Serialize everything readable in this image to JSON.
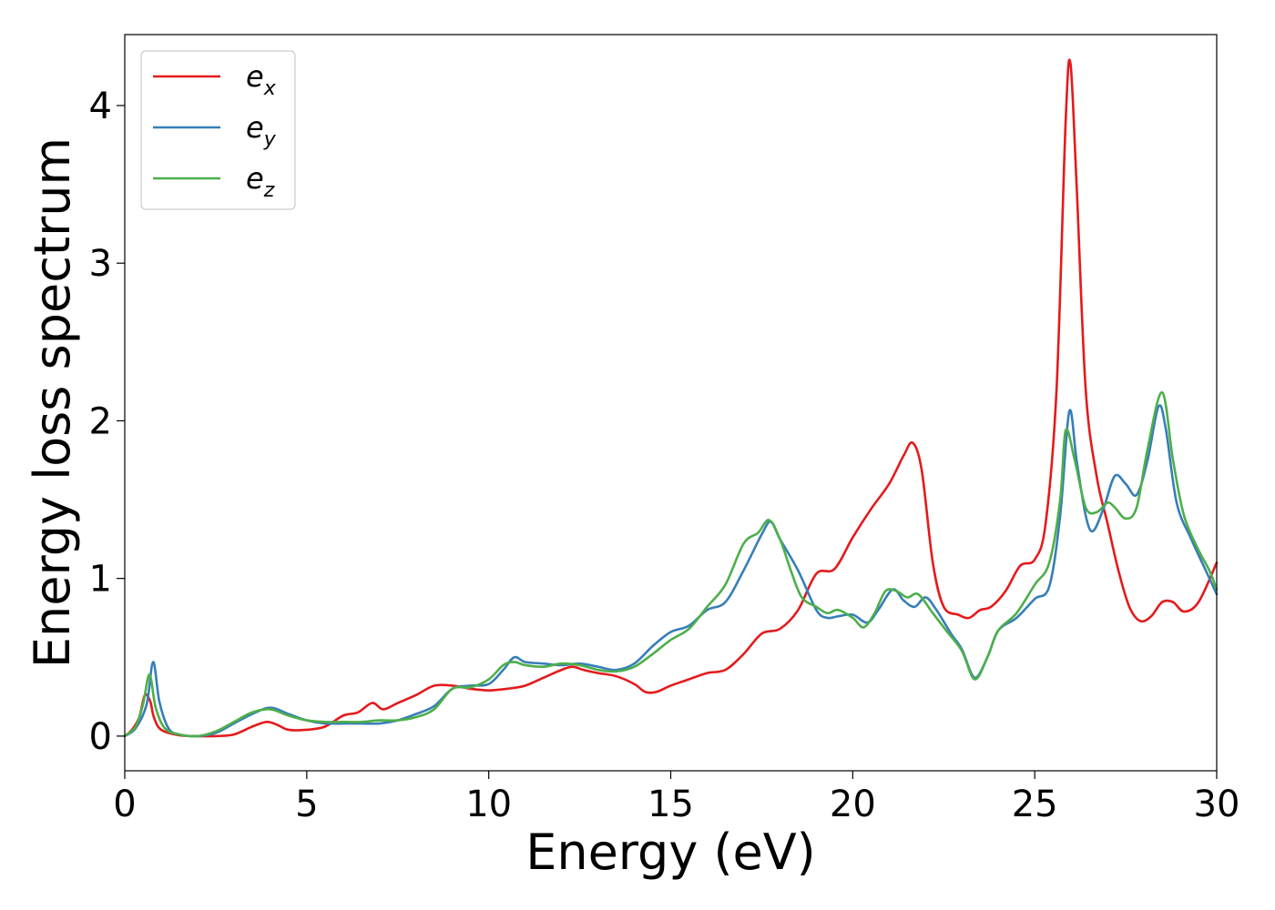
{
  "chart_data": {
    "type": "line",
    "xlabel": "Energy (eV)",
    "ylabel": "Energy loss spectrum",
    "xlim": [
      0,
      30
    ],
    "ylim": [
      -0.22,
      4.45
    ],
    "xticks": [
      0,
      5,
      10,
      15,
      20,
      25,
      30
    ],
    "xtick_labels": [
      "0",
      "5",
      "10",
      "15",
      "20",
      "25",
      "30"
    ],
    "yticks": [
      0,
      1,
      2,
      3,
      4
    ],
    "ytick_labels": [
      "0",
      "1",
      "2",
      "3",
      "4"
    ],
    "grid": false,
    "legend_position": "top-left",
    "series": [
      {
        "name": "e_x",
        "label_base": "e",
        "label_sub": "x",
        "color": "#e41a1c",
        "points": [
          [
            0,
            0.0
          ],
          [
            0.2,
            0.04
          ],
          [
            0.4,
            0.12
          ],
          [
            0.55,
            0.26
          ],
          [
            0.7,
            0.22
          ],
          [
            0.8,
            0.12
          ],
          [
            1.0,
            0.04
          ],
          [
            1.5,
            0.005
          ],
          [
            2.0,
            0.0
          ],
          [
            2.5,
            0.0
          ],
          [
            3.0,
            0.01
          ],
          [
            3.5,
            0.06
          ],
          [
            3.9,
            0.09
          ],
          [
            4.2,
            0.07
          ],
          [
            4.5,
            0.04
          ],
          [
            5.0,
            0.04
          ],
          [
            5.5,
            0.06
          ],
          [
            6.0,
            0.13
          ],
          [
            6.4,
            0.15
          ],
          [
            6.8,
            0.21
          ],
          [
            7.1,
            0.17
          ],
          [
            7.5,
            0.21
          ],
          [
            8.0,
            0.26
          ],
          [
            8.5,
            0.32
          ],
          [
            9.0,
            0.32
          ],
          [
            9.5,
            0.3
          ],
          [
            10.0,
            0.29
          ],
          [
            10.5,
            0.3
          ],
          [
            11.0,
            0.32
          ],
          [
            11.5,
            0.37
          ],
          [
            12.0,
            0.42
          ],
          [
            12.3,
            0.44
          ],
          [
            12.6,
            0.42
          ],
          [
            13.0,
            0.4
          ],
          [
            13.5,
            0.38
          ],
          [
            14.0,
            0.33
          ],
          [
            14.3,
            0.28
          ],
          [
            14.6,
            0.28
          ],
          [
            15.0,
            0.32
          ],
          [
            15.5,
            0.36
          ],
          [
            16.0,
            0.4
          ],
          [
            16.5,
            0.42
          ],
          [
            17.0,
            0.52
          ],
          [
            17.5,
            0.65
          ],
          [
            18.0,
            0.68
          ],
          [
            18.5,
            0.8
          ],
          [
            19.0,
            1.03
          ],
          [
            19.5,
            1.06
          ],
          [
            20.0,
            1.26
          ],
          [
            20.5,
            1.44
          ],
          [
            21.0,
            1.6
          ],
          [
            21.4,
            1.78
          ],
          [
            21.65,
            1.86
          ],
          [
            21.9,
            1.68
          ],
          [
            22.2,
            1.1
          ],
          [
            22.5,
            0.82
          ],
          [
            22.9,
            0.77
          ],
          [
            23.2,
            0.75
          ],
          [
            23.5,
            0.8
          ],
          [
            23.8,
            0.82
          ],
          [
            24.2,
            0.92
          ],
          [
            24.6,
            1.08
          ],
          [
            25.0,
            1.12
          ],
          [
            25.3,
            1.35
          ],
          [
            25.6,
            2.2
          ],
          [
            25.85,
            3.9
          ],
          [
            25.98,
            4.27
          ],
          [
            26.15,
            3.5
          ],
          [
            26.4,
            2.2
          ],
          [
            26.7,
            1.65
          ],
          [
            27.0,
            1.35
          ],
          [
            27.3,
            1.05
          ],
          [
            27.6,
            0.82
          ],
          [
            27.9,
            0.73
          ],
          [
            28.2,
            0.76
          ],
          [
            28.5,
            0.85
          ],
          [
            28.8,
            0.85
          ],
          [
            29.1,
            0.79
          ],
          [
            29.5,
            0.85
          ],
          [
            30.0,
            1.1
          ]
        ]
      },
      {
        "name": "e_y",
        "label_base": "e",
        "label_sub": "y",
        "color": "#377eb8",
        "points": [
          [
            0,
            0.0
          ],
          [
            0.3,
            0.05
          ],
          [
            0.6,
            0.2
          ],
          [
            0.78,
            0.47
          ],
          [
            0.95,
            0.22
          ],
          [
            1.2,
            0.05
          ],
          [
            1.5,
            0.01
          ],
          [
            2.0,
            0.0
          ],
          [
            2.5,
            0.02
          ],
          [
            3.0,
            0.08
          ],
          [
            3.5,
            0.14
          ],
          [
            4.0,
            0.18
          ],
          [
            4.5,
            0.14
          ],
          [
            5.0,
            0.1
          ],
          [
            5.5,
            0.08
          ],
          [
            6.0,
            0.08
          ],
          [
            6.5,
            0.08
          ],
          [
            7.0,
            0.08
          ],
          [
            7.5,
            0.1
          ],
          [
            8.0,
            0.14
          ],
          [
            8.5,
            0.19
          ],
          [
            9.0,
            0.3
          ],
          [
            9.5,
            0.32
          ],
          [
            10.0,
            0.33
          ],
          [
            10.4,
            0.42
          ],
          [
            10.7,
            0.5
          ],
          [
            11.0,
            0.47
          ],
          [
            11.5,
            0.46
          ],
          [
            12.0,
            0.45
          ],
          [
            12.5,
            0.46
          ],
          [
            13.0,
            0.44
          ],
          [
            13.5,
            0.42
          ],
          [
            14.0,
            0.46
          ],
          [
            14.5,
            0.57
          ],
          [
            15.0,
            0.66
          ],
          [
            15.5,
            0.7
          ],
          [
            16.0,
            0.8
          ],
          [
            16.5,
            0.85
          ],
          [
            17.0,
            1.05
          ],
          [
            17.5,
            1.28
          ],
          [
            17.75,
            1.36
          ],
          [
            18.0,
            1.25
          ],
          [
            18.5,
            1.05
          ],
          [
            19.0,
            0.8
          ],
          [
            19.3,
            0.75
          ],
          [
            19.6,
            0.76
          ],
          [
            20.0,
            0.77
          ],
          [
            20.4,
            0.72
          ],
          [
            20.7,
            0.8
          ],
          [
            21.1,
            0.93
          ],
          [
            21.4,
            0.86
          ],
          [
            21.7,
            0.82
          ],
          [
            22.0,
            0.88
          ],
          [
            22.3,
            0.8
          ],
          [
            22.7,
            0.65
          ],
          [
            23.0,
            0.55
          ],
          [
            23.35,
            0.37
          ],
          [
            23.7,
            0.5
          ],
          [
            24.0,
            0.67
          ],
          [
            24.5,
            0.75
          ],
          [
            25.0,
            0.87
          ],
          [
            25.4,
            0.95
          ],
          [
            25.7,
            1.4
          ],
          [
            25.95,
            2.06
          ],
          [
            26.15,
            1.75
          ],
          [
            26.4,
            1.4
          ],
          [
            26.6,
            1.3
          ],
          [
            26.9,
            1.45
          ],
          [
            27.2,
            1.65
          ],
          [
            27.5,
            1.6
          ],
          [
            27.8,
            1.53
          ],
          [
            28.1,
            1.75
          ],
          [
            28.4,
            2.09
          ],
          [
            28.6,
            1.95
          ],
          [
            28.9,
            1.48
          ],
          [
            29.3,
            1.25
          ],
          [
            29.7,
            1.05
          ],
          [
            30.0,
            0.9
          ]
        ]
      },
      {
        "name": "e_z",
        "label_base": "e",
        "label_sub": "z",
        "color": "#4daf4a",
        "points": [
          [
            0,
            0.0
          ],
          [
            0.3,
            0.06
          ],
          [
            0.5,
            0.2
          ],
          [
            0.68,
            0.39
          ],
          [
            0.85,
            0.18
          ],
          [
            1.1,
            0.05
          ],
          [
            1.5,
            0.01
          ],
          [
            2.0,
            0.0
          ],
          [
            2.5,
            0.03
          ],
          [
            3.0,
            0.09
          ],
          [
            3.5,
            0.15
          ],
          [
            4.0,
            0.17
          ],
          [
            4.5,
            0.13
          ],
          [
            5.0,
            0.1
          ],
          [
            5.5,
            0.09
          ],
          [
            6.0,
            0.09
          ],
          [
            6.5,
            0.09
          ],
          [
            7.0,
            0.1
          ],
          [
            7.5,
            0.1
          ],
          [
            8.0,
            0.12
          ],
          [
            8.5,
            0.17
          ],
          [
            9.0,
            0.3
          ],
          [
            9.5,
            0.31
          ],
          [
            10.0,
            0.36
          ],
          [
            10.4,
            0.45
          ],
          [
            10.7,
            0.47
          ],
          [
            11.0,
            0.45
          ],
          [
            11.5,
            0.44
          ],
          [
            12.0,
            0.46
          ],
          [
            12.5,
            0.45
          ],
          [
            13.0,
            0.42
          ],
          [
            13.5,
            0.41
          ],
          [
            14.0,
            0.44
          ],
          [
            14.5,
            0.52
          ],
          [
            15.0,
            0.61
          ],
          [
            15.5,
            0.68
          ],
          [
            16.0,
            0.82
          ],
          [
            16.5,
            0.96
          ],
          [
            17.0,
            1.22
          ],
          [
            17.4,
            1.29
          ],
          [
            17.7,
            1.37
          ],
          [
            18.0,
            1.25
          ],
          [
            18.3,
            1.05
          ],
          [
            18.6,
            0.88
          ],
          [
            19.0,
            0.82
          ],
          [
            19.3,
            0.78
          ],
          [
            19.6,
            0.8
          ],
          [
            20.0,
            0.75
          ],
          [
            20.3,
            0.69
          ],
          [
            20.6,
            0.78
          ],
          [
            20.9,
            0.92
          ],
          [
            21.2,
            0.92
          ],
          [
            21.5,
            0.88
          ],
          [
            21.8,
            0.9
          ],
          [
            22.2,
            0.78
          ],
          [
            22.6,
            0.66
          ],
          [
            23.0,
            0.54
          ],
          [
            23.35,
            0.36
          ],
          [
            23.7,
            0.5
          ],
          [
            24.0,
            0.67
          ],
          [
            24.5,
            0.78
          ],
          [
            25.0,
            0.96
          ],
          [
            25.4,
            1.1
          ],
          [
            25.7,
            1.5
          ],
          [
            25.85,
            1.94
          ],
          [
            26.1,
            1.75
          ],
          [
            26.4,
            1.45
          ],
          [
            26.7,
            1.42
          ],
          [
            27.0,
            1.48
          ],
          [
            27.2,
            1.45
          ],
          [
            27.5,
            1.38
          ],
          [
            27.8,
            1.45
          ],
          [
            28.1,
            1.82
          ],
          [
            28.5,
            2.18
          ],
          [
            28.8,
            1.75
          ],
          [
            29.1,
            1.4
          ],
          [
            29.5,
            1.18
          ],
          [
            29.8,
            1.05
          ],
          [
            30.0,
            0.93
          ]
        ]
      }
    ]
  }
}
